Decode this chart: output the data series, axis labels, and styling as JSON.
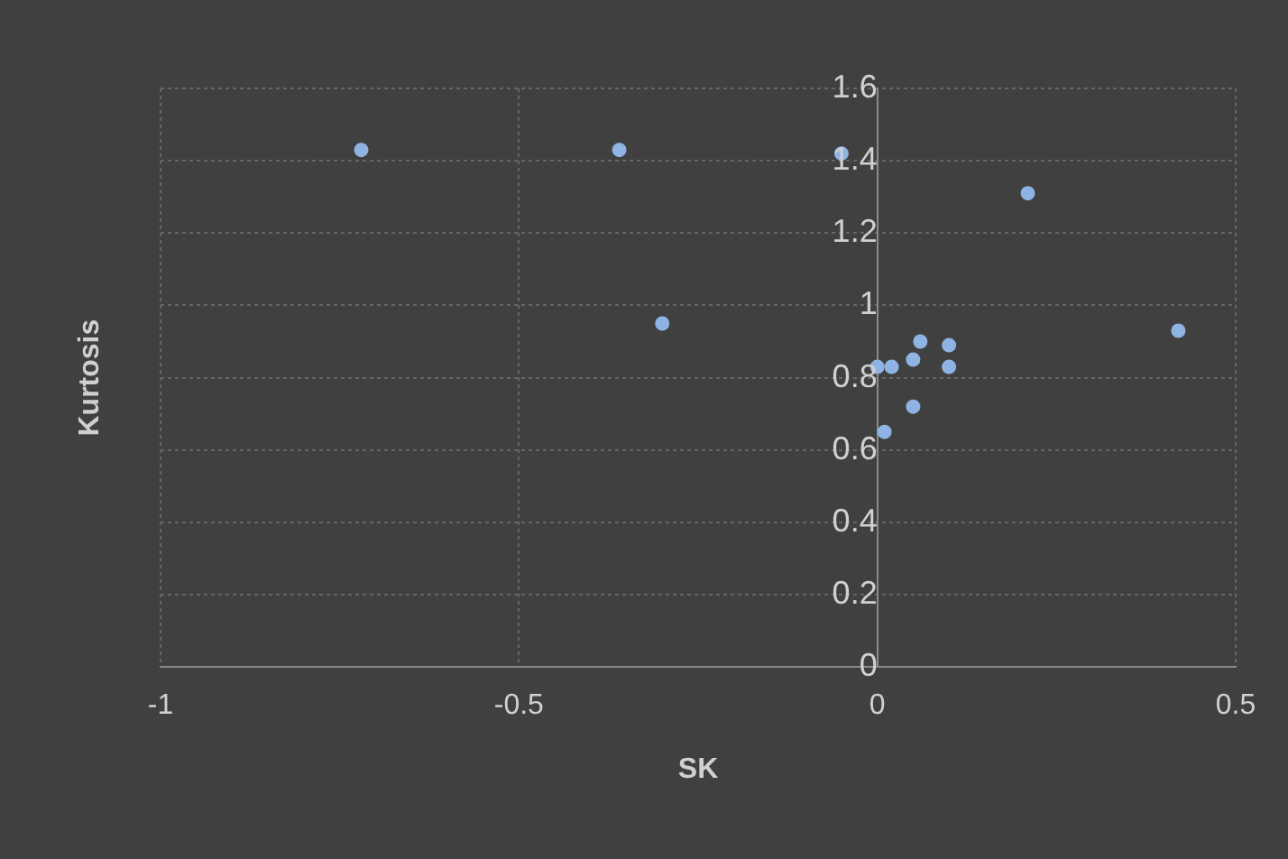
{
  "chart_data": {
    "type": "scatter",
    "xlabel": "SK",
    "ylabel": "Kurtosis",
    "x": [
      -0.72,
      -0.36,
      -0.3,
      -0.05,
      0.21,
      0.42,
      0,
      0.02,
      0.05,
      0.06,
      0.1,
      0.1,
      0.05,
      0.01
    ],
    "values": [
      1.43,
      1.43,
      0.95,
      1.42,
      1.31,
      0.93,
      0.83,
      0.83,
      0.85,
      0.9,
      0.89,
      0.83,
      0.72,
      0.65
    ],
    "color": "#8fb4e3",
    "marker": "circle",
    "xlim": [
      -1,
      0.5
    ],
    "xticks": [
      -1,
      -0.5,
      0,
      0.5
    ],
    "ylim": [
      0,
      1.6
    ],
    "yticks": [
      0,
      0.2,
      0.4,
      0.6,
      0.8,
      1,
      1.2,
      1.4,
      1.6
    ],
    "grid": true,
    "legend": false
  }
}
